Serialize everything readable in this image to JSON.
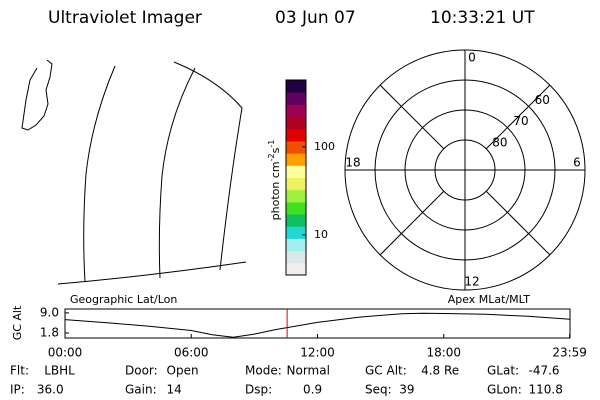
{
  "header": {
    "instrument": "Ultraviolet Imager",
    "date": "03 Jun 07",
    "time": "10:33:21 UT"
  },
  "colorbar": {
    "label": "photon cm",
    "exp1": "-2",
    "unit2": "s",
    "exp2": "-1",
    "log": true,
    "range": [
      3.5,
      575
    ],
    "ticks": [
      10,
      100
    ]
  },
  "polar": {
    "mlt_ticks": [
      0,
      6,
      12,
      18
    ],
    "lat_range": [
      90,
      50
    ],
    "lat_ticks": [
      60,
      70,
      80
    ]
  },
  "timeline": {
    "left_label": "Geographic Lat/Lon",
    "right_label": "Apex MLat/MLT",
    "ylabel": "GC Alt",
    "xlim": [
      0,
      24
    ],
    "ylim": [
      0,
      10.4
    ],
    "yticks": [
      {
        "value": 9,
        "label": "9.0"
      },
      {
        "value": 1.8,
        "label": "1.8"
      }
    ],
    "xticks": [
      {
        "value": 0,
        "label": "00:00"
      },
      {
        "value": 6,
        "label": "06:00"
      },
      {
        "value": 12,
        "label": "12:00"
      },
      {
        "value": 18,
        "label": "18:00"
      },
      {
        "value": 23.983,
        "label": "23:59"
      }
    ],
    "x": [
      0,
      2,
      4,
      6,
      7,
      8,
      9,
      10,
      12,
      14,
      16,
      17,
      18,
      20,
      22,
      24
    ],
    "values": [
      6.6,
      5.5,
      4.2,
      2.7,
      1.2,
      0.3,
      1.4,
      3.0,
      5.6,
      7.5,
      8.7,
      8.9,
      8.8,
      8.5,
      7.8,
      6.7
    ],
    "marker": 10.556
  },
  "footer": [
    [
      {
        "label": "Flt:",
        "value": "LBHL"
      },
      {
        "label": "Door:",
        "value": "Open"
      },
      {
        "label": "Mode:",
        "value": "Normal"
      },
      {
        "label": "GC Alt:",
        "value": "4.8 Re"
      },
      {
        "label": "GLat:",
        "value": "-47.6"
      }
    ],
    [
      {
        "label": "IP:",
        "value": "36.0"
      },
      {
        "label": "Gain:",
        "value": "14"
      },
      {
        "label": "Dsp:",
        "value": "0.9"
      },
      {
        "label": "Seq:",
        "value": "39"
      },
      {
        "label": "GLon:",
        "value": "110.8"
      }
    ]
  ]
}
